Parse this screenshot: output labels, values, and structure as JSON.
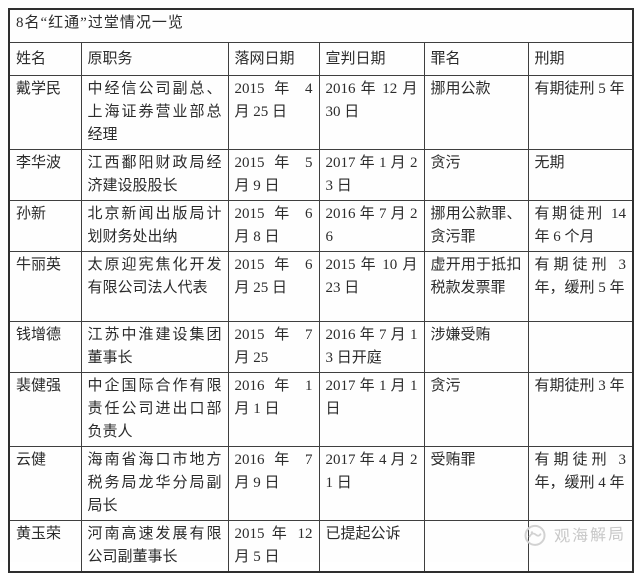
{
  "title": "8名“红通”过堂情况一览",
  "table": {
    "headers": [
      "姓名",
      "原职务",
      "落网日期",
      "宣判日期",
      "罪名",
      "刑期"
    ],
    "column_keys": [
      "name",
      "position",
      "arrest_date",
      "sentence_date",
      "crime",
      "sentence"
    ],
    "rows": [
      {
        "name": "戴学民",
        "position": "中经信公司副总、上海证券营业部总经理",
        "arrest_date": "2015 年 4 月 25 日",
        "sentence_date": "2016 年 12 月 30 日",
        "crime": "挪用公款",
        "sentence": "有期徒刑 5 年"
      },
      {
        "name": "李华波",
        "position": "江西鄱阳财政局经济建设股股长",
        "arrest_date": "2015 年 5 月 9 日",
        "sentence_date": "2017 年 1 月 23 日",
        "crime": "贪污",
        "sentence": "无期"
      },
      {
        "name": "孙新",
        "position": "北京新闻出版局计划财务处出纳",
        "arrest_date": "2015 年 6 月 8 日",
        "sentence_date": "2016 年 7 月 26",
        "crime": "挪用公款罪、贪污罪",
        "sentence": "有期徒刑 14 年 6 个月"
      },
      {
        "name": "牛丽英",
        "position": "太原迎宪焦化开发有限公司法人代表",
        "arrest_date": "2015 年 6 月 25 日",
        "sentence_date": "2015 年 10 月 23 日",
        "crime": "虚开用于抵扣税款发票罪",
        "sentence": "有期徒刑 3 年，缓刑 5 年"
      },
      {
        "name": "钱增德",
        "position": "江苏中淮建设集团董事长",
        "arrest_date": "2015 年 7 月 25",
        "sentence_date": "2016 年 7 月 13 日开庭",
        "crime": "涉嫌受贿",
        "sentence": ""
      },
      {
        "name": "裴健强",
        "position": "中企国际合作有限责任公司进出口部负责人",
        "arrest_date": "2016 年 1 月 1 日",
        "sentence_date": "2017 年 1 月 1 日",
        "crime": "贪污",
        "sentence": "有期徒刑 3 年"
      },
      {
        "name": "云健",
        "position": "海南省海口市地方税务局龙华分局副局长",
        "arrest_date": "2016 年 7 月 9 日",
        "sentence_date": "2017 年 4 月 21 日",
        "crime": "受贿罪",
        "sentence": "有期徒刑 3 年，缓刑 4 年"
      },
      {
        "name": "黄玉荣",
        "position": "河南高速发展有限公司副董事长",
        "arrest_date": "2015 年 12 月 5 日",
        "sentence_date": "已提起公诉",
        "crime": "",
        "sentence": ""
      }
    ]
  },
  "watermark": {
    "label": "观海解局",
    "icon": "guanhai-logo-icon"
  },
  "colors": {
    "border": "#3f3f3f",
    "outer_border": "#2e2e2e",
    "text": "#2b2b2b",
    "title_text": "#1e1e1e",
    "watermark": "#c8c8c8",
    "background": "#fefefe"
  }
}
